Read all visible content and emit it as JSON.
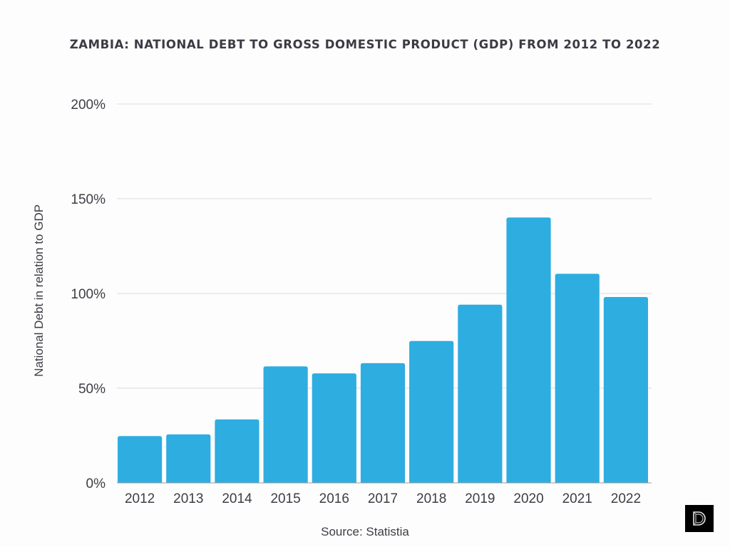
{
  "chart_data": {
    "type": "bar",
    "title": "ZAMBIA: NATIONAL DEBT TO GROSS DOMESTIC PRODUCT (GDP) FROM 2012 TO 2022",
    "xlabel": "",
    "ylabel": "National Debt in relation to GDP",
    "categories": [
      "2012",
      "2013",
      "2014",
      "2015",
      "2016",
      "2017",
      "2018",
      "2019",
      "2020",
      "2021",
      "2022"
    ],
    "values": [
      24.7,
      25.6,
      33.5,
      61.5,
      57.8,
      63.2,
      74.9,
      94.1,
      140.1,
      110.4,
      98.1
    ],
    "ylim": [
      0,
      200
    ],
    "yticks": [
      0,
      50,
      100,
      150,
      200
    ],
    "ytick_labels": [
      "0%",
      "50%",
      "100%",
      "150%",
      "200%"
    ],
    "grid": true,
    "bar_color": "#2eade1",
    "source": "Source: Statistia"
  },
  "logo": {
    "icon": "brand-logo-icon"
  }
}
